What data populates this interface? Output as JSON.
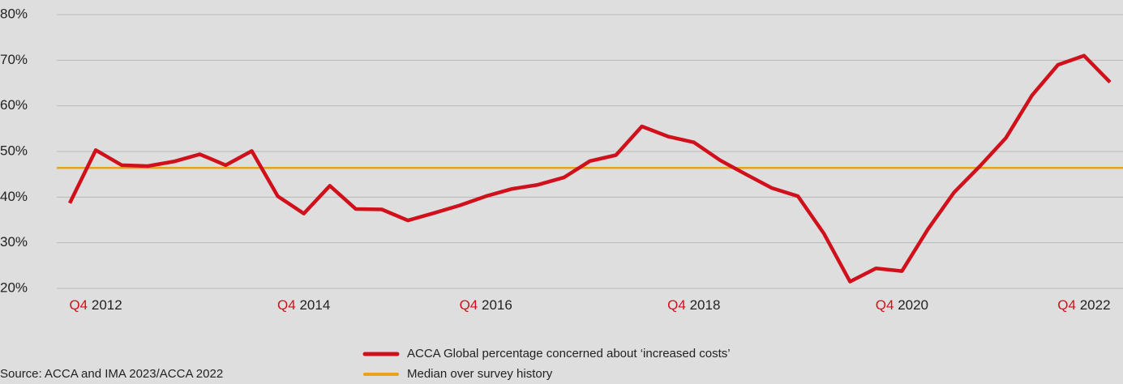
{
  "chart_data": {
    "type": "line",
    "source": "Source: ACCA and IMA 2023/ACCA 2022",
    "categories": [
      null,
      "Q4 2012",
      null,
      null,
      null,
      null,
      null,
      null,
      null,
      "Q4 2014",
      null,
      null,
      null,
      null,
      null,
      null,
      "Q4 2016",
      null,
      null,
      null,
      null,
      null,
      null,
      null,
      "Q4 2018",
      null,
      null,
      null,
      null,
      null,
      null,
      null,
      "Q4 2020",
      null,
      null,
      null,
      null,
      null,
      null,
      "Q4 2022",
      null
    ],
    "series": [
      {
        "name": "ACCA Global percentage concerned about ‘increased costs’",
        "color": "#d0101b",
        "values": [
          38.7,
          50.3,
          47,
          46.8,
          47.8,
          49.4,
          47,
          50.1,
          40.2,
          36.4,
          42.5,
          37.4,
          37.3,
          34.9,
          36.5,
          38.2,
          40.2,
          41.8,
          42.7,
          44.3,
          47.9,
          49.2,
          55.5,
          53.3,
          52,
          48.1,
          45,
          42,
          40.2,
          32,
          21.5,
          24.4,
          23.8,
          33,
          41,
          46.8,
          53,
          62.3,
          69,
          71,
          65.2
        ]
      }
    ],
    "reference_lines": [
      {
        "name": "Median over survey history",
        "value": 46.4,
        "color": "#e8a317"
      }
    ],
    "ylim": [
      20,
      80
    ],
    "yticks": [
      {
        "value": 20,
        "label": "20%"
      },
      {
        "value": 30,
        "label": "30%"
      },
      {
        "value": 40,
        "label": "40%"
      },
      {
        "value": 50,
        "label": "50%"
      },
      {
        "value": 60,
        "label": "60%"
      },
      {
        "value": 70,
        "label": "70%"
      },
      {
        "value": 80,
        "label": "80%"
      }
    ],
    "grid": true
  }
}
